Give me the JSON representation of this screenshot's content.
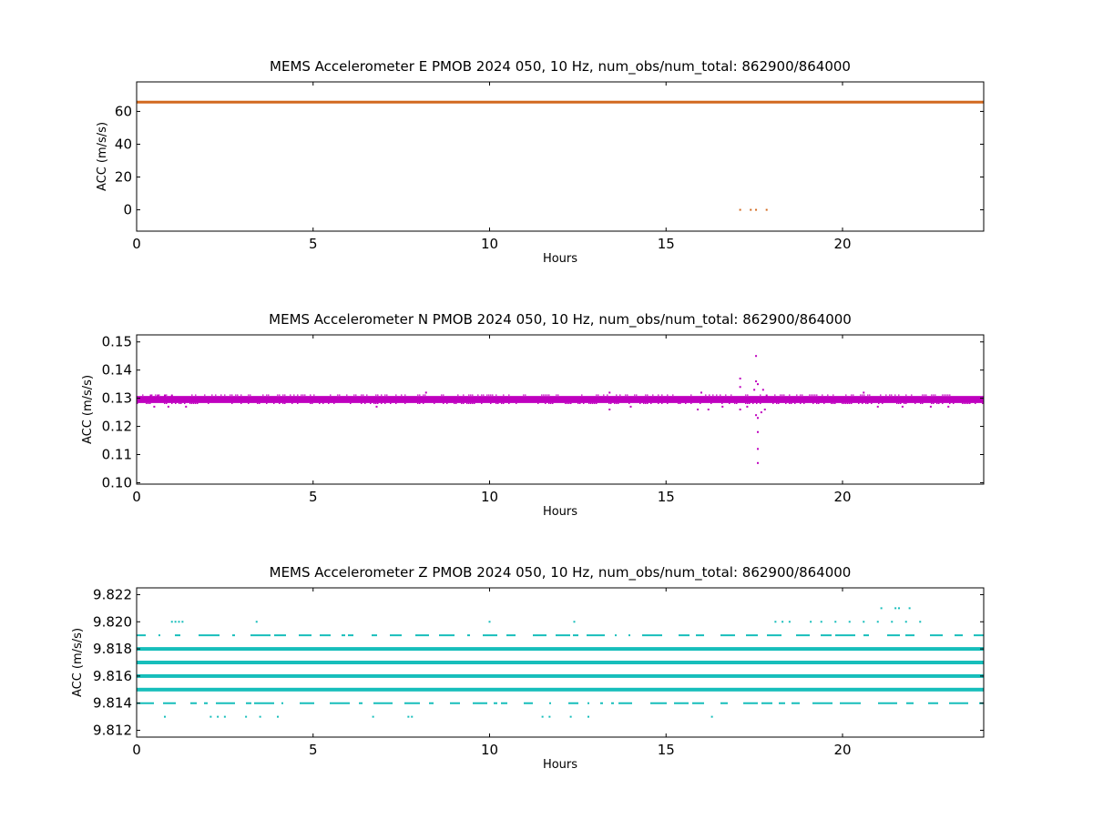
{
  "chart_data": [
    {
      "type": "scatter",
      "title": "MEMS Accelerometer E PMOB 2024 050, 10 Hz, num_obs/num_total: 862900/864000",
      "xlabel": "Hours",
      "ylabel": "ACC (m/s/s)",
      "xlim": [
        0,
        24
      ],
      "ylim": [
        -13,
        78
      ],
      "xticks": [
        "0",
        "5",
        "10",
        "15",
        "20"
      ],
      "xtick_values": [
        0,
        5,
        10,
        15,
        20
      ],
      "yticks": [
        "0",
        "20",
        "40",
        "60"
      ],
      "ytick_values": [
        0,
        20,
        40,
        60
      ],
      "color": "#d2691e",
      "grid": false,
      "series": [
        {
          "kind": "band",
          "x": [
            0,
            24
          ],
          "y_lower": 65.5,
          "y_upper": 66.5
        },
        {
          "kind": "points",
          "x": [
            17.1,
            17.4,
            17.55,
            17.85
          ],
          "y": [
            0,
            0,
            0,
            0
          ]
        }
      ]
    },
    {
      "type": "scatter",
      "title": "MEMS Accelerometer N PMOB 2024 050, 10 Hz, num_obs/num_total: 862900/864000",
      "xlabel": "Hours",
      "ylabel": "ACC (m/s/s)",
      "xlim": [
        0,
        24
      ],
      "ylim": [
        0.0995,
        0.1525
      ],
      "xticks": [
        "0",
        "5",
        "10",
        "15",
        "20"
      ],
      "xtick_values": [
        0,
        5,
        10,
        15,
        20
      ],
      "yticks": [
        "0.10",
        "0.11",
        "0.12",
        "0.13",
        "0.14",
        "0.15"
      ],
      "ytick_values": [
        0.1,
        0.11,
        0.12,
        0.13,
        0.14,
        0.15
      ],
      "color": "#bf00bf",
      "grid": false,
      "series": [
        {
          "kind": "band",
          "x": [
            0,
            24
          ],
          "y_lower": 0.1283,
          "y_upper": 0.1308
        },
        {
          "kind": "points",
          "x": [
            0.4,
            0.6,
            0.8,
            1.0,
            0.5,
            0.9,
            1.4,
            6.8,
            8.2,
            13.4,
            13.4,
            14.0,
            15.9,
            16.0,
            16.2,
            16.6,
            17.1,
            17.1,
            17.1,
            17.3,
            17.5,
            17.55,
            17.55,
            17.55,
            17.6,
            17.6,
            17.6,
            17.6,
            17.6,
            17.7,
            17.75,
            17.8,
            17.85,
            20.6,
            21.0,
            21.7,
            22.5,
            23.0
          ],
          "y": [
            0.131,
            0.131,
            0.131,
            0.131,
            0.127,
            0.127,
            0.127,
            0.127,
            0.132,
            0.132,
            0.126,
            0.127,
            0.126,
            0.132,
            0.126,
            0.127,
            0.137,
            0.134,
            0.126,
            0.127,
            0.133,
            0.145,
            0.136,
            0.124,
            0.118,
            0.112,
            0.107,
            0.135,
            0.123,
            0.125,
            0.133,
            0.126,
            0.131,
            0.132,
            0.127,
            0.127,
            0.127,
            0.127
          ]
        }
      ]
    },
    {
      "type": "scatter",
      "title": "MEMS Accelerometer Z PMOB 2024 050, 10 Hz, num_obs/num_total: 862900/864000",
      "xlabel": "Hours",
      "ylabel": "ACC (m/s/s)",
      "xlim": [
        0,
        24
      ],
      "ylim": [
        9.8115,
        9.8225
      ],
      "xticks": [
        "0",
        "5",
        "10",
        "15",
        "20"
      ],
      "xtick_values": [
        0,
        5,
        10,
        15,
        20
      ],
      "yticks": [
        "9.812",
        "9.814",
        "9.816",
        "9.818",
        "9.820",
        "9.822"
      ],
      "ytick_values": [
        9.812,
        9.814,
        9.816,
        9.818,
        9.82,
        9.822
      ],
      "color": "#17bebb",
      "grid": false,
      "series": [
        {
          "kind": "level",
          "y": 9.818,
          "x": [
            0,
            24
          ],
          "density": "full"
        },
        {
          "kind": "level",
          "y": 9.817,
          "x": [
            0,
            24
          ],
          "density": "full"
        },
        {
          "kind": "level",
          "y": 9.816,
          "x": [
            0,
            24
          ],
          "density": "full"
        },
        {
          "kind": "level",
          "y": 9.815,
          "x": [
            0,
            24
          ],
          "density": "full"
        },
        {
          "kind": "level",
          "y": 9.819,
          "x": [
            0,
            24
          ],
          "density": "sparse"
        },
        {
          "kind": "level",
          "y": 9.814,
          "x": [
            0,
            24
          ],
          "density": "sparse"
        },
        {
          "kind": "points",
          "x": [
            1.0,
            1.1,
            1.2,
            1.3,
            3.4,
            10.0,
            12.4,
            18.1,
            18.3,
            18.5,
            19.1,
            19.4,
            19.8,
            20.2,
            20.6,
            21.0,
            21.4,
            21.8,
            22.2,
            21.1,
            21.5,
            21.6,
            21.9,
            0.8,
            2.1,
            2.3,
            2.5,
            3.1,
            3.5,
            4.0,
            6.7,
            7.7,
            7.8,
            11.5,
            11.7,
            12.3,
            12.8,
            16.3
          ],
          "y": [
            9.82,
            9.82,
            9.82,
            9.82,
            9.82,
            9.82,
            9.82,
            9.82,
            9.82,
            9.82,
            9.82,
            9.82,
            9.82,
            9.82,
            9.82,
            9.82,
            9.82,
            9.82,
            9.82,
            9.821,
            9.821,
            9.821,
            9.821,
            9.813,
            9.813,
            9.813,
            9.813,
            9.813,
            9.813,
            9.813,
            9.813,
            9.813,
            9.813,
            9.813,
            9.813,
            9.813,
            9.813,
            9.813
          ]
        }
      ]
    }
  ]
}
